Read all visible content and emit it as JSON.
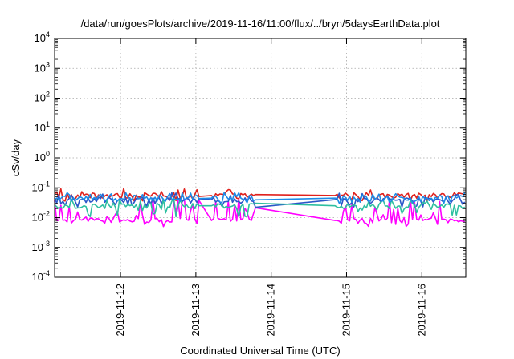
{
  "chart_data": {
    "type": "line",
    "title": "/data/run/goesPlots/archive/2019-11-16/11:00/flux/../bryn/5daysEarthData.plot",
    "xlabel": "Coordinated Universal Time (UTC)",
    "ylabel": "cSv/day",
    "yscale": "log",
    "ylim": [
      0.0001,
      10000
    ],
    "xlim": [
      "2019-11-11 03:00",
      "2019-11-16 14:00"
    ],
    "x_ticks": [
      "2019-11-12",
      "2019-11-13",
      "2019-11-14",
      "2019-11-15",
      "2019-11-16"
    ],
    "y_ticks": [
      {
        "base": "10",
        "exp": "-4"
      },
      {
        "base": "10",
        "exp": "-3"
      },
      {
        "base": "10",
        "exp": "-2"
      },
      {
        "base": "10",
        "exp": "-1"
      },
      {
        "base": "10",
        "exp": "0"
      },
      {
        "base": "10",
        "exp": "1"
      },
      {
        "base": "10",
        "exp": "2"
      },
      {
        "base": "10",
        "exp": "3"
      },
      {
        "base": "10",
        "exp": "4"
      }
    ],
    "grid": true,
    "gaps": [
      {
        "start": "2019-11-13 01:30",
        "end": "2019-11-13 05:00"
      },
      {
        "start": "2019-11-13 19:00",
        "end": "2019-11-14 20:00"
      }
    ],
    "series": [
      {
        "color": "#e0201c",
        "band": [
          0.035,
          0.1
        ],
        "typical": 0.055
      },
      {
        "color": "#2b57c8",
        "band": [
          0.022,
          0.07
        ],
        "typical": 0.04
      },
      {
        "color": "#2ebfa0",
        "band": [
          0.01,
          0.045
        ],
        "typical": 0.025
      },
      {
        "color": "#1e8be6",
        "band": [
          0.03,
          0.07
        ],
        "typical": 0.045
      },
      {
        "color": "#ff00ff",
        "band": [
          0.005,
          0.045
        ],
        "typical": 0.008
      }
    ]
  }
}
